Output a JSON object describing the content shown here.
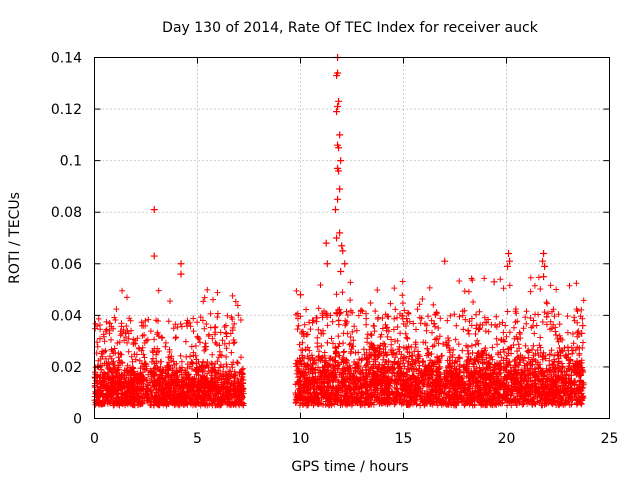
{
  "chart_data": {
    "type": "scatter",
    "title": "Day 130 of 2014, Rate Of TEC Index for receiver auck",
    "xlabel": "GPS time / hours",
    "ylabel": "ROTI / TECUs",
    "xlim": [
      0,
      25
    ],
    "ylim": [
      0,
      0.14
    ],
    "xticks": [
      0,
      5,
      10,
      15,
      20,
      25
    ],
    "yticks": [
      0,
      0.02,
      0.04,
      0.06,
      0.08,
      0.1,
      0.12,
      0.14
    ],
    "xtick_labels": [
      "0",
      "5",
      "10",
      "15",
      "20",
      "25"
    ],
    "ytick_labels": [
      "0",
      "0.02",
      "0.04",
      "0.06",
      "0.08",
      "0.1",
      "0.12",
      "0.14"
    ],
    "grid": true,
    "marker": "+",
    "series": [
      {
        "name": "ROTI",
        "color": "#ff0000",
        "segments": [
          {
            "x_start": 0.0,
            "x_end": 7.25,
            "typical": [
              0.005,
              0.025
            ],
            "peak": 0.05
          },
          {
            "x_start": 9.75,
            "x_end": 23.75,
            "typical": [
              0.005,
              0.03
            ],
            "peak": 0.055
          }
        ],
        "points": [
          {
            "x": 2.9,
            "y": 0.081
          },
          {
            "x": 2.9,
            "y": 0.063
          },
          {
            "x": 4.2,
            "y": 0.06
          },
          {
            "x": 4.2,
            "y": 0.056
          },
          {
            "x": 10.0,
            "y": 0.048
          },
          {
            "x": 11.25,
            "y": 0.068
          },
          {
            "x": 11.3,
            "y": 0.06
          },
          {
            "x": 11.7,
            "y": 0.081
          },
          {
            "x": 11.8,
            "y": 0.14
          },
          {
            "x": 11.8,
            "y": 0.134
          },
          {
            "x": 11.75,
            "y": 0.133
          },
          {
            "x": 11.85,
            "y": 0.123
          },
          {
            "x": 11.8,
            "y": 0.121
          },
          {
            "x": 11.75,
            "y": 0.119
          },
          {
            "x": 11.9,
            "y": 0.11
          },
          {
            "x": 11.8,
            "y": 0.106
          },
          {
            "x": 11.85,
            "y": 0.105
          },
          {
            "x": 11.95,
            "y": 0.1
          },
          {
            "x": 11.8,
            "y": 0.097
          },
          {
            "x": 11.85,
            "y": 0.096
          },
          {
            "x": 11.9,
            "y": 0.089
          },
          {
            "x": 11.8,
            "y": 0.085
          },
          {
            "x": 11.9,
            "y": 0.072
          },
          {
            "x": 11.75,
            "y": 0.07
          },
          {
            "x": 12.0,
            "y": 0.067
          },
          {
            "x": 12.05,
            "y": 0.065
          },
          {
            "x": 12.15,
            "y": 0.06
          },
          {
            "x": 11.95,
            "y": 0.057
          },
          {
            "x": 17.0,
            "y": 0.061
          },
          {
            "x": 19.4,
            "y": 0.053
          },
          {
            "x": 20.1,
            "y": 0.064
          },
          {
            "x": 20.15,
            "y": 0.061
          },
          {
            "x": 20.05,
            "y": 0.059
          },
          {
            "x": 21.8,
            "y": 0.064
          },
          {
            "x": 21.75,
            "y": 0.061
          },
          {
            "x": 21.85,
            "y": 0.059
          },
          {
            "x": 21.8,
            "y": 0.055
          },
          {
            "x": 23.7,
            "y": 0.036
          },
          {
            "x": 23.65,
            "y": 0.033
          }
        ]
      }
    ]
  }
}
